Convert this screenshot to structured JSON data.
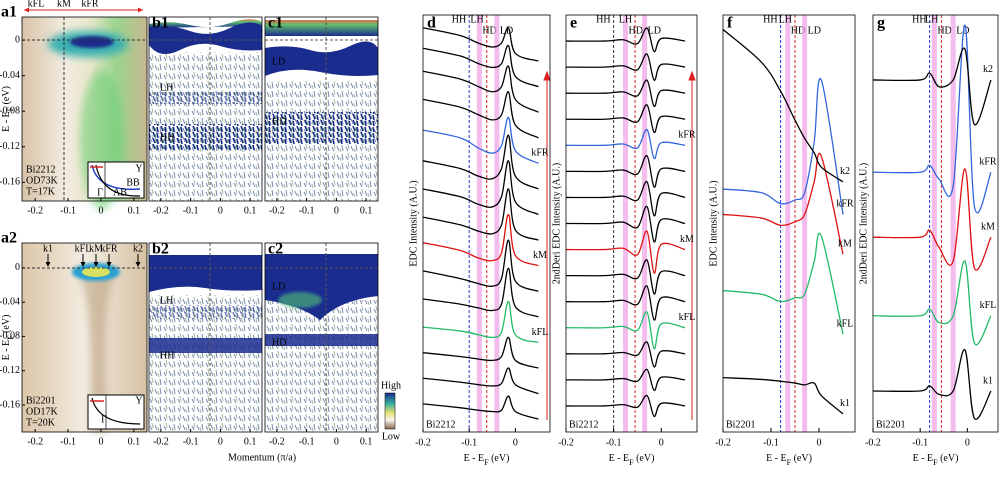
{
  "chart_data": [
    {
      "type": "image",
      "panel": "a1",
      "xlim": [
        -0.24,
        0.14
      ],
      "xticks": [
        -0.2,
        -0.1,
        0,
        0.1
      ],
      "ylim": [
        -0.181,
        0.026
      ],
      "yticks": [
        0,
        -0.04,
        -0.08,
        -0.12,
        -0.16
      ],
      "ylabel": [
        "E - E",
        "F",
        " (eV)"
      ],
      "top_labels": [
        "kFL",
        "kM",
        "kFR"
      ],
      "annotations": [
        "Bi2212",
        "OD73K",
        "T=17K"
      ],
      "inset_labels": [
        "Y",
        "BB",
        "AB",
        "Γ"
      ]
    },
    {
      "type": "image",
      "panel": "b1",
      "xlim": [
        -0.24,
        0.14
      ],
      "xticks": [
        -0.2,
        -0.1,
        0,
        0.1
      ],
      "ylim": [
        -0.181,
        0.026
      ],
      "labels": [
        "LH",
        "HH"
      ]
    },
    {
      "type": "image",
      "panel": "c1",
      "xlim": [
        -0.24,
        0.14
      ],
      "xticks": [
        -0.2,
        -0.1,
        0,
        0.1
      ],
      "ylim": [
        -0.181,
        0.026
      ],
      "labels": [
        "LD",
        "HD"
      ]
    },
    {
      "type": "image",
      "panel": "a2",
      "xlim": [
        -0.24,
        0.14
      ],
      "xticks": [
        -0.2,
        -0.1,
        0,
        0.1
      ],
      "ylim": [
        -0.1915,
        0.029
      ],
      "yticks": [
        0,
        -0.04,
        -0.08,
        -0.12,
        -0.16
      ],
      "ylabel": [
        "E - E",
        "F",
        " (eV)"
      ],
      "top_labels": [
        "k1",
        "kFL",
        "kM",
        "kFR",
        "k2"
      ],
      "annotations": [
        "Bi2201",
        "OD17K",
        "T=20K"
      ],
      "inset_labels": [
        "Y",
        "Γ"
      ],
      "colorbar": [
        "High",
        "Low"
      ]
    },
    {
      "type": "image",
      "panel": "b2",
      "xlim": [
        -0.24,
        0.14
      ],
      "xticks": [
        -0.2,
        -0.1,
        0,
        0.1
      ],
      "ylim": [
        -0.1915,
        0.029
      ],
      "labels": [
        "LH",
        "HH"
      ],
      "xlabel": "Momentum (π/a)"
    },
    {
      "type": "image",
      "panel": "c2",
      "xlim": [
        -0.24,
        0.14
      ],
      "xticks": [
        -0.2,
        -0.1,
        0,
        0.1
      ],
      "ylim": [
        -0.1915,
        0.029
      ],
      "labels": [
        "LD",
        "HD"
      ]
    },
    {
      "type": "line",
      "panel": "d",
      "sample": "Bi2212",
      "ylabel": "EDC Intensity (A.U.)",
      "xlabel": [
        "E - E",
        "F",
        " (eV)"
      ],
      "xlim": [
        -0.2,
        0.075
      ],
      "xticks": [
        -0.2,
        -0.1,
        0
      ],
      "ylim": [
        -0.5,
        15.8
      ],
      "x": [
        -0.2,
        -0.12,
        -0.08,
        -0.05,
        -0.03,
        -0.015,
        0,
        0.05
      ],
      "markers": [
        {
          "label": "HH",
          "value": -0.1,
          "color": "#2233cc",
          "style": "dash"
        },
        {
          "label": "HD",
          "value": -0.078,
          "color": "#f0a0e6",
          "style": "band"
        },
        {
          "label": "LH",
          "value": -0.062,
          "color": "#dd2222",
          "style": "dash"
        },
        {
          "label": "LD",
          "value": -0.04,
          "color": "#f0a0e6",
          "style": "band"
        }
      ],
      "series": [
        {
          "color": "#000000",
          "values": [
            0.6,
            0.45,
            0.35,
            0.3,
            0.35,
            0.9,
            0.3,
            0
          ]
        },
        {
          "color": "#000000",
          "values": [
            1.6,
            1.45,
            1.35,
            1.3,
            1.4,
            2.0,
            1.35,
            1.0
          ]
        },
        {
          "color": "#000000",
          "values": [
            2.6,
            2.45,
            2.35,
            2.3,
            2.45,
            3.2,
            2.3,
            2.0
          ]
        },
        {
          "name": "kFL",
          "color": "#22bb66",
          "values": [
            3.6,
            3.45,
            3.3,
            3.2,
            3.4,
            4.6,
            3.3,
            3.0
          ]
        },
        {
          "color": "#000000",
          "values": [
            4.7,
            4.5,
            4.35,
            4.25,
            4.5,
            5.9,
            4.4,
            4.0
          ]
        },
        {
          "color": "#000000",
          "values": [
            5.8,
            5.5,
            5.3,
            5.2,
            5.5,
            7.0,
            5.4,
            5.0
          ]
        },
        {
          "name": "kM",
          "color": "#dd1111",
          "values": [
            6.9,
            6.6,
            6.3,
            6.2,
            6.5,
            8.0,
            6.4,
            6.0
          ]
        },
        {
          "color": "#000000",
          "values": [
            7.9,
            7.6,
            7.35,
            7.25,
            7.6,
            9.0,
            7.4,
            7.0
          ]
        },
        {
          "color": "#000000",
          "values": [
            9.0,
            8.7,
            8.4,
            8.3,
            8.7,
            10.1,
            8.5,
            8.0
          ]
        },
        {
          "color": "#000000",
          "values": [
            10.1,
            9.8,
            9.5,
            9.4,
            9.8,
            11.1,
            9.5,
            9.0
          ]
        },
        {
          "name": "kFR",
          "color": "#3366dd",
          "values": [
            11.3,
            11.0,
            10.6,
            10.4,
            10.7,
            11.8,
            10.5,
            10.0
          ]
        },
        {
          "color": "#000000",
          "values": [
            12.5,
            12.2,
            11.9,
            11.7,
            11.9,
            12.8,
            11.5,
            11.0
          ]
        },
        {
          "color": "#000000",
          "values": [
            13.6,
            13.3,
            13.0,
            12.8,
            13.0,
            13.8,
            12.5,
            12.0
          ]
        },
        {
          "color": "#000000",
          "values": [
            14.5,
            14.2,
            13.9,
            13.75,
            13.9,
            14.6,
            13.4,
            13.0
          ]
        },
        {
          "color": "#000000",
          "values": [
            15.3,
            15.0,
            14.7,
            14.55,
            14.7,
            15.3,
            14.3,
            14.0
          ]
        }
      ]
    },
    {
      "type": "line",
      "panel": "e",
      "sample": "Bi2212",
      "ylabel": "2ndDeri EDC Intensity (A.U.)",
      "xlabel": [
        "E - E",
        "F",
        " (eV)"
      ],
      "xlim": [
        -0.2,
        0.075
      ],
      "xticks": [
        -0.2,
        -0.1,
        0
      ],
      "ylim": [
        -1,
        15
      ],
      "x": [
        -0.2,
        -0.12,
        -0.08,
        -0.05,
        -0.03,
        -0.015,
        0,
        0.05
      ],
      "markers": [
        {
          "label": "HH",
          "value": -0.1,
          "color": "#333333",
          "style": "dash"
        },
        {
          "label": "HD",
          "value": -0.075,
          "color": "#f0a0e6",
          "style": "band"
        },
        {
          "label": "LH",
          "value": -0.055,
          "color": "#dd2222",
          "style": "dash"
        },
        {
          "label": "LD",
          "value": -0.035,
          "color": "#f0a0e6",
          "style": "band"
        }
      ],
      "series": [
        {
          "color": "#000000",
          "values": [
            0,
            0,
            0.05,
            -0.05,
            0.4,
            -0.4,
            0.1,
            0
          ]
        },
        {
          "color": "#000000",
          "values": [
            1,
            1,
            1.05,
            0.95,
            1.4,
            0.6,
            1.1,
            1
          ]
        },
        {
          "color": "#000000",
          "values": [
            2,
            2,
            2.05,
            1.95,
            2.45,
            1.5,
            2.1,
            2
          ]
        },
        {
          "name": "kFL",
          "color": "#22bb66",
          "values": [
            3,
            3,
            3.05,
            2.9,
            3.6,
            2.2,
            3.15,
            3
          ]
        },
        {
          "color": "#000000",
          "values": [
            4,
            4,
            4.05,
            3.9,
            4.6,
            3.3,
            4.15,
            4
          ]
        },
        {
          "color": "#000000",
          "values": [
            5,
            5,
            5.05,
            4.9,
            5.6,
            4.3,
            5.15,
            5
          ]
        },
        {
          "name": "kM",
          "color": "#dd1111",
          "values": [
            6,
            6,
            6.05,
            5.8,
            6.7,
            5.1,
            6.2,
            6
          ]
        },
        {
          "color": "#000000",
          "values": [
            7,
            7,
            7.05,
            6.85,
            7.65,
            6.3,
            7.15,
            7
          ]
        },
        {
          "color": "#000000",
          "values": [
            8,
            8,
            8.05,
            7.9,
            8.6,
            7.3,
            8.15,
            8
          ]
        },
        {
          "color": "#000000",
          "values": [
            9,
            9,
            9.05,
            8.9,
            9.6,
            8.4,
            9.1,
            9
          ]
        },
        {
          "name": "kFR",
          "color": "#3366dd",
          "values": [
            10,
            10,
            10.05,
            9.9,
            10.6,
            9.5,
            10.1,
            10
          ]
        },
        {
          "color": "#000000",
          "values": [
            11,
            11,
            11.05,
            10.9,
            11.55,
            10.5,
            11.1,
            11
          ]
        },
        {
          "color": "#000000",
          "values": [
            12,
            12,
            12.05,
            11.9,
            12.5,
            11.5,
            12.1,
            12
          ]
        },
        {
          "color": "#000000",
          "values": [
            13,
            13,
            13.05,
            12.9,
            13.5,
            12.5,
            13.1,
            13
          ]
        },
        {
          "color": "#000000",
          "values": [
            14,
            14,
            14.05,
            13.9,
            14.5,
            13.6,
            14.1,
            14
          ]
        }
      ]
    },
    {
      "type": "line",
      "panel": "f",
      "sample": "Bi2201",
      "ylabel": "EDC Intensity (A.U.)",
      "xlabel": [
        "E - E",
        "F",
        " (eV)"
      ],
      "xlim": [
        -0.2,
        0.075
      ],
      "xticks": [
        -0.2,
        -0.1,
        0
      ],
      "ylim": [
        -0.5,
        11
      ],
      "x": [
        -0.2,
        -0.12,
        -0.08,
        -0.05,
        -0.03,
        -0.01,
        0.005,
        0.05
      ],
      "markers": [
        {
          "label": "HH",
          "value": -0.08,
          "color": "#2233cc",
          "style": "dash"
        },
        {
          "label": "HD",
          "value": -0.065,
          "color": "#f0a0e6",
          "style": "band"
        },
        {
          "label": "LH",
          "value": -0.05,
          "color": "#dd2222",
          "style": "dash"
        },
        {
          "label": "LD",
          "value": -0.03,
          "color": "#f0a0e6",
          "style": "band"
        }
      ],
      "series": [
        {
          "name": "k1",
          "color": "#000000",
          "values": [
            1.0,
            0.95,
            0.9,
            0.85,
            0.8,
            0.85,
            0.5,
            0.0
          ]
        },
        {
          "name": "kFL",
          "color": "#22bb66",
          "values": [
            3.4,
            3.3,
            3.1,
            3.2,
            3.3,
            4.2,
            4.9,
            2.2
          ]
        },
        {
          "name": "kM",
          "color": "#dd1111",
          "values": [
            5.5,
            5.4,
            5.2,
            5.3,
            5.5,
            6.4,
            7.1,
            4.4
          ]
        },
        {
          "name": "kFR",
          "color": "#3366dd",
          "values": [
            6.2,
            6.1,
            5.8,
            5.9,
            6.1,
            7.5,
            9.2,
            5.5
          ]
        },
        {
          "name": "k2",
          "color": "#000000",
          "values": [
            10.6,
            9.7,
            8.9,
            8.1,
            7.6,
            7.2,
            6.8,
            6.4
          ]
        }
      ]
    },
    {
      "type": "line",
      "panel": "g",
      "sample": "Bi2201",
      "ylabel": "2ndDeri EDC Intensity (A.U.)",
      "xlabel": [
        "E - E",
        "F",
        " (eV)"
      ],
      "xlim": [
        -0.2,
        0.065
      ],
      "xticks": [
        -0.2,
        -0.1,
        0
      ],
      "ylim": [
        -1.2,
        11
      ],
      "x": [
        -0.2,
        -0.1,
        -0.08,
        -0.06,
        -0.03,
        -0.005,
        0.015,
        0.05
      ],
      "markers": [
        {
          "label": "HH",
          "value": -0.08,
          "color": "#2233cc",
          "style": "dash"
        },
        {
          "label": "HD",
          "value": -0.07,
          "color": "#f0a0e6",
          "style": "band"
        },
        {
          "label": "LH",
          "value": -0.055,
          "color": "#dd2222",
          "style": "dash"
        },
        {
          "label": "LD",
          "value": -0.03,
          "color": "#f0a0e6",
          "style": "band"
        }
      ],
      "series": [
        {
          "name": "k1",
          "color": "#000000",
          "values": [
            0,
            0,
            0.15,
            -0.1,
            0,
            1.2,
            -0.8,
            0
          ]
        },
        {
          "name": "kFL",
          "color": "#22bb66",
          "values": [
            2.2,
            2.2,
            2.4,
            2.0,
            2.2,
            3.8,
            1.4,
            2.2
          ]
        },
        {
          "name": "kM",
          "color": "#dd1111",
          "values": [
            4.5,
            4.5,
            4.7,
            4.2,
            3.8,
            6.5,
            3.6,
            4.5
          ]
        },
        {
          "name": "kFR",
          "color": "#3366dd",
          "values": [
            6.4,
            6.4,
            6.6,
            6.2,
            6.0,
            10.7,
            5.4,
            6.4
          ]
        },
        {
          "name": "k2",
          "color": "#000000",
          "values": [
            9.1,
            9.1,
            9.3,
            8.9,
            9.1,
            10.0,
            7.8,
            9.1
          ]
        }
      ]
    }
  ]
}
